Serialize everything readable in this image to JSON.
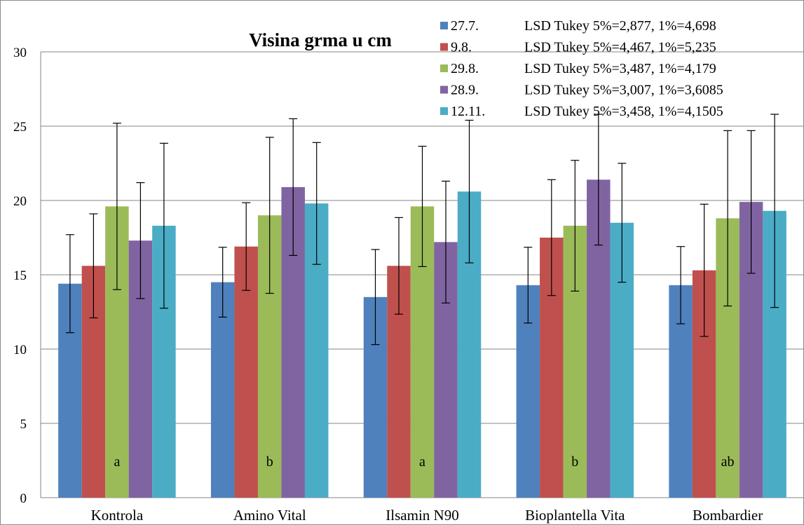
{
  "chart_data": {
    "type": "bar",
    "title": "Visina grma u cm",
    "xlabel": "",
    "ylabel": "",
    "ylim": [
      0,
      30
    ],
    "yticks": [
      0,
      5,
      10,
      15,
      20,
      25,
      30
    ],
    "grid": true,
    "legend_position": "top-right",
    "categories": [
      "Kontrola",
      "Amino Vital",
      "Ilsamin N90",
      "Bioplantella Vita",
      "Bombardier"
    ],
    "series": [
      {
        "name": "27.7.",
        "lsd": "LSD Tukey 5%=2,877,  1%=4,698",
        "color": "#4F81BD",
        "values": [
          14.4,
          14.5,
          13.5,
          14.3,
          14.3
        ],
        "errors": [
          3.3,
          2.35,
          3.2,
          2.55,
          2.6
        ]
      },
      {
        "name": "9.8.",
        "lsd": "LSD Tukey 5%=4,467,  1%=5,235",
        "color": "#C0504D",
        "values": [
          15.6,
          16.9,
          15.6,
          17.5,
          15.3
        ],
        "errors": [
          3.5,
          2.95,
          3.25,
          3.9,
          4.45
        ]
      },
      {
        "name": "29.8.",
        "lsd": "LSD Tukey 5%=3,487,  1%=4,179",
        "color": "#9BBB59",
        "values": [
          19.6,
          19.0,
          19.6,
          18.3,
          18.8
        ],
        "errors": [
          5.6,
          5.25,
          4.05,
          4.4,
          5.9
        ]
      },
      {
        "name": "28.9.",
        "lsd": "LSD Tukey 5%=3,007,  1%=3,6085",
        "color": "#8064A2",
        "values": [
          17.3,
          20.9,
          17.2,
          21.4,
          19.9
        ],
        "errors": [
          3.9,
          4.6,
          4.1,
          4.4,
          4.8
        ]
      },
      {
        "name": "12.11.",
        "lsd": "LSD Tukey 5%=3,458,  1%=4,1505",
        "color": "#4BACC6",
        "values": [
          18.3,
          19.8,
          20.6,
          18.5,
          19.3
        ],
        "errors": [
          5.55,
          4.1,
          4.8,
          4.0,
          6.5
        ]
      }
    ],
    "annotations": [
      "a",
      "b",
      "a",
      "b",
      "ab"
    ]
  }
}
